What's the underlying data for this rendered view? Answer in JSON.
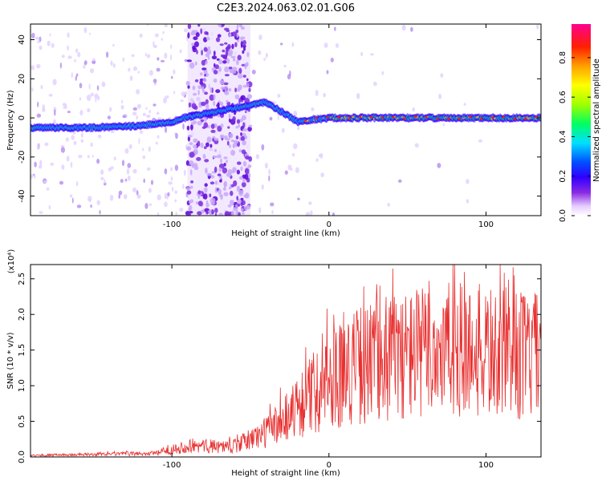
{
  "title": "C2E3.2024.063.02.01.G06",
  "chart_data": [
    {
      "type": "heatmap",
      "xlabel": "Height of straight line (km)",
      "ylabel": "Frequency (Hz)",
      "xlim": [
        -190,
        135
      ],
      "ylim": [
        -50,
        48
      ],
      "x_ticks": [
        -100,
        0,
        100
      ],
      "y_ticks": [
        -40,
        -20,
        0,
        20,
        40
      ],
      "grid": false,
      "colorbar": {
        "label": "Normalized spectral amplitude",
        "range": [
          0,
          0.97
        ],
        "ticks": [
          0.0,
          0.2,
          0.4,
          0.6,
          0.8
        ],
        "colormap": [
          "#ffffff",
          "#e6ccff",
          "#8a2be2",
          "#3000ff",
          "#0050ff",
          "#00e0ff",
          "#00ff60",
          "#a0ff00",
          "#ffff00",
          "#ffa000",
          "#ff2000",
          "#ff0090"
        ]
      },
      "main_ridge": [
        {
          "x": -190,
          "y": -5
        },
        {
          "x": -150,
          "y": -5
        },
        {
          "x": -120,
          "y": -4
        },
        {
          "x": -100,
          "y": -2
        },
        {
          "x": -92,
          "y": 0
        },
        {
          "x": -40,
          "y": 8
        },
        {
          "x": -30,
          "y": 3
        },
        {
          "x": -20,
          "y": -2
        },
        {
          "x": 0,
          "y": 0
        },
        {
          "x": 50,
          "y": 0
        },
        {
          "x": 100,
          "y": 0
        },
        {
          "x": 135,
          "y": 0
        }
      ],
      "broadband_intervals": [
        [
          -90,
          -50
        ]
      ]
    },
    {
      "type": "line",
      "xlabel": "Height of straight line (km)",
      "ylabel": "SNR (10 * v/v)",
      "y_multiplier": "(x10⁴)",
      "xlim": [
        -190,
        135
      ],
      "ylim": [
        0,
        2.7
      ],
      "x_ticks": [
        -100,
        0,
        100
      ],
      "y_ticks": [
        0.0,
        0.5,
        1.0,
        1.5,
        2.0,
        2.5
      ],
      "grid": false,
      "series": [
        {
          "color": "#e83030",
          "trend": [
            {
              "x": -190,
              "y": 0.02
            },
            {
              "x": -110,
              "y": 0.05
            },
            {
              "x": -90,
              "y": 0.15
            },
            {
              "x": -60,
              "y": 0.15
            },
            {
              "x": -40,
              "y": 0.35
            },
            {
              "x": -20,
              "y": 0.7
            },
            {
              "x": 0,
              "y": 1.1
            },
            {
              "x": 20,
              "y": 1.3
            },
            {
              "x": 50,
              "y": 1.45
            },
            {
              "x": 80,
              "y": 1.5
            },
            {
              "x": 110,
              "y": 1.45
            },
            {
              "x": 135,
              "y": 1.4
            }
          ],
          "peak_max": 2.7,
          "peak_x": 80
        }
      ]
    }
  ]
}
